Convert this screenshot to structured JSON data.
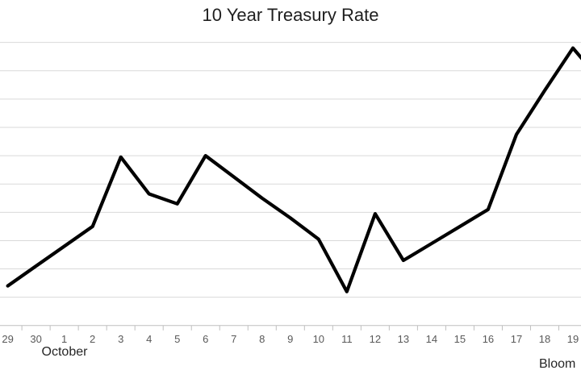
{
  "chart_data": {
    "type": "line",
    "title": "10 Year Treasury Rate",
    "x_axis": {
      "month_label": "October",
      "categories": [
        "29",
        "30",
        "1",
        "2",
        "3",
        "4",
        "5",
        "6",
        "7",
        "8",
        "9",
        "10",
        "11",
        "12",
        "13",
        "14",
        "15",
        "16",
        "17",
        "18",
        "19"
      ]
    },
    "y_axis": {
      "range": [
        0,
        10
      ],
      "tick_labels_visible": false,
      "note": "y-axis tick labels are cropped out of the frame; series values are expressed in horizontal-gridline units above the bottom axis line"
    },
    "series": [
      {
        "values": [
          1.4,
          2.1,
          2.8,
          3.5,
          5.95,
          4.65,
          4.3,
          6.0,
          5.25,
          4.5,
          3.8,
          3.05,
          1.2,
          3.95,
          2.3,
          2.9,
          3.5,
          4.1,
          6.75,
          8.3,
          9.8
        ]
      }
    ],
    "line_continues_past_right_edge": true,
    "edge_clip_value": 9.4,
    "attribution": "Bloom",
    "legend": "none",
    "gridlines": "horizontal",
    "colors": {
      "line": "#000000",
      "gridline": "#d9d9d9",
      "axis": "#bfbfbf",
      "tick_label": "#595959",
      "title_text": "#1f1f1f",
      "annotation_text": "#262626",
      "background": "#ffffff"
    }
  }
}
